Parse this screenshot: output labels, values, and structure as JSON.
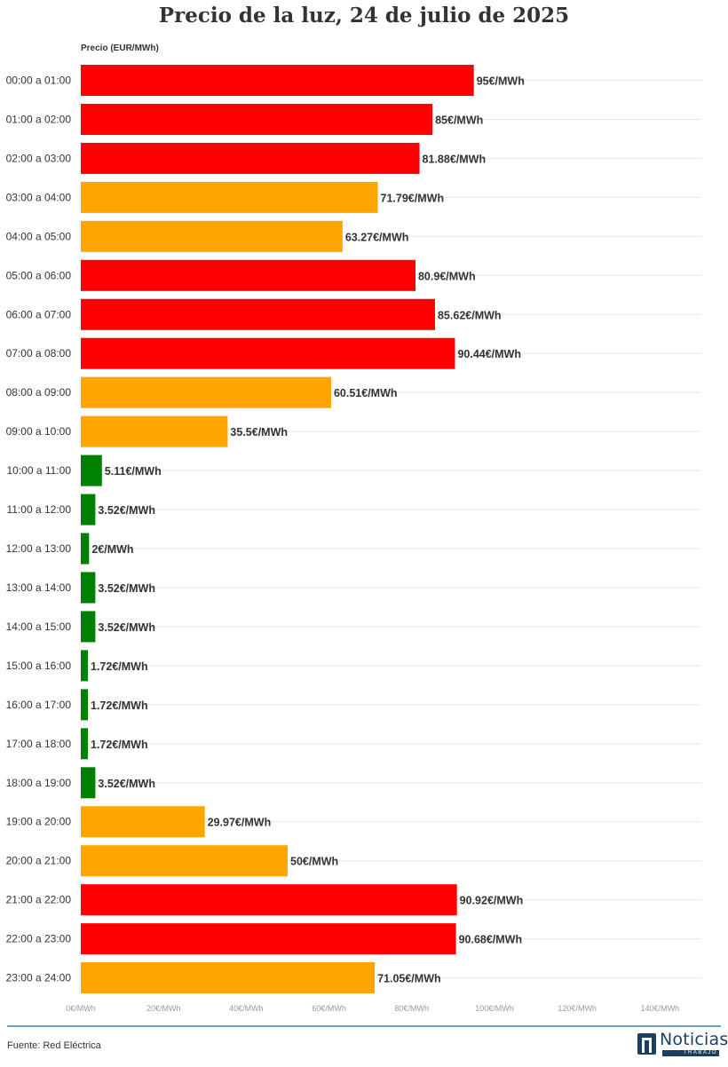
{
  "title": "Precio de la luz, 24 de julio de 2025",
  "source": "Fuente: Red Eléctrica",
  "logo": {
    "name": "Noticias",
    "sub": "TRABAJO"
  },
  "colors": {
    "high": "#ff0000",
    "mid": "#ffa500",
    "low": "#008000",
    "grid": "#e6e6e6",
    "footer": "#6f9fc0"
  },
  "chart_data": {
    "type": "bar",
    "orientation": "horizontal",
    "title": "Precio de la luz, 24 de julio de 2025",
    "ylabel": "Precio (EUR/MWh)",
    "value_suffix": "€/MWh",
    "xlim": [
      0,
      140
    ],
    "xticks": [
      "0€/MWh",
      "20€/MWh",
      "40€/MWh",
      "60€/MWh",
      "80€/MWh",
      "100€/MWh",
      "120€/MWh",
      "140€/MWh"
    ],
    "grid": true,
    "categories": [
      "00:00 a 01:00",
      "01:00 a 02:00",
      "02:00 a 03:00",
      "03:00 a 04:00",
      "04:00 a 05:00",
      "05:00 a 06:00",
      "06:00 a 07:00",
      "07:00 a 08:00",
      "08:00 a 09:00",
      "09:00 a 10:00",
      "10:00 a 11:00",
      "11:00 a 12:00",
      "12:00 a 13:00",
      "13:00 a 14:00",
      "14:00 a 15:00",
      "15:00 a 16:00",
      "16:00 a 17:00",
      "17:00 a 18:00",
      "18:00 a 19:00",
      "19:00 a 20:00",
      "20:00 a 21:00",
      "21:00 a 22:00",
      "22:00 a 23:00",
      "23:00 a 24:00"
    ],
    "values": [
      95,
      85,
      81.88,
      71.79,
      63.27,
      80.9,
      85.62,
      90.44,
      60.51,
      35.5,
      5.11,
      3.52,
      2,
      3.52,
      3.52,
      1.72,
      1.72,
      1.72,
      3.52,
      29.97,
      50,
      90.92,
      90.68,
      71.05
    ],
    "data_labels": [
      "95€/MWh",
      "85€/MWh",
      "81.88€/MWh",
      "71.79€/MWh",
      "63.27€/MWh",
      "80.9€/MWh",
      "85.62€/MWh",
      "90.44€/MWh",
      "60.51€/MWh",
      "35.5€/MWh",
      "5.11€/MWh",
      "3.52€/MWh",
      "2€/MWh",
      "3.52€/MWh",
      "3.52€/MWh",
      "1.72€/MWh",
      "1.72€/MWh",
      "1.72€/MWh",
      "3.52€/MWh",
      "29.97€/MWh",
      "50€/MWh",
      "90.92€/MWh",
      "90.68€/MWh",
      "71.05€/MWh"
    ],
    "bar_colors": [
      "#ff0000",
      "#ff0000",
      "#ff0000",
      "#ffa500",
      "#ffa500",
      "#ff0000",
      "#ff0000",
      "#ff0000",
      "#ffa500",
      "#ffa500",
      "#008000",
      "#008000",
      "#008000",
      "#008000",
      "#008000",
      "#008000",
      "#008000",
      "#008000",
      "#008000",
      "#ffa500",
      "#ffa500",
      "#ff0000",
      "#ff0000",
      "#ffa500"
    ]
  }
}
